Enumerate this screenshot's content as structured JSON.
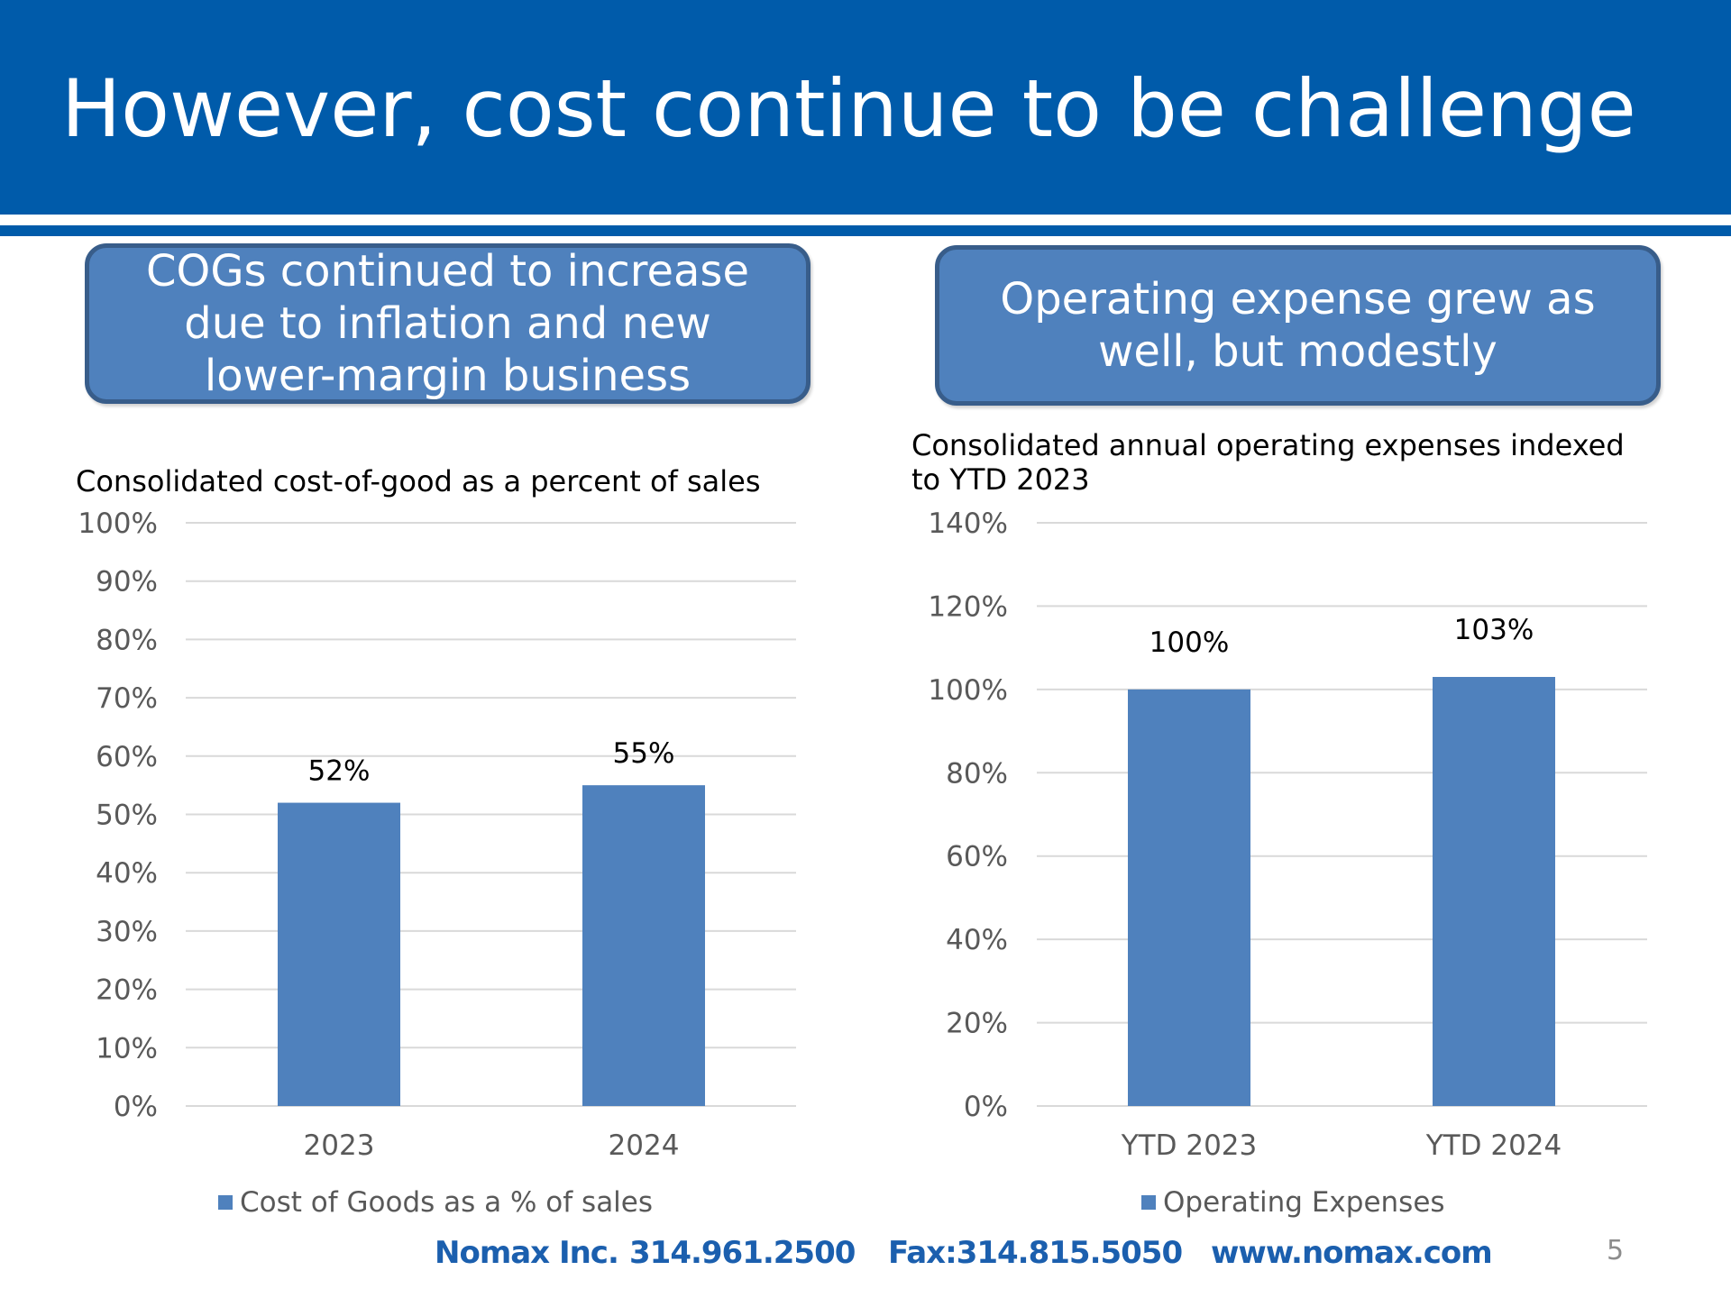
{
  "slide": {
    "title": "However, cost continue to be challenge",
    "page_number": "5"
  },
  "callouts": {
    "left_lines": [
      "COGs continued to increase",
      "due to inflation and new",
      "lower-margin business"
    ],
    "right_lines": [
      "Operating expense grew as",
      "well, but modestly"
    ]
  },
  "footer": {
    "company": "Nomax Inc.",
    "phone": "314.961.2500",
    "fax": "Fax:314.815.5050",
    "website": "www.nomax.com"
  },
  "colors": {
    "header": "#005BAA",
    "bar": "#4F81BD",
    "callout_border": "#385D8A",
    "footer_text": "#1B5FAE"
  },
  "chart_data": [
    {
      "type": "bar",
      "title": "Consolidated cost-of-good as a percent of sales",
      "categories": [
        "2023",
        "2024"
      ],
      "series": [
        {
          "name": "Cost of Goods as a % of sales",
          "values": [
            52,
            55
          ]
        }
      ],
      "data_labels": [
        "52%",
        "55%"
      ],
      "ylim": [
        0,
        100
      ],
      "yticks": [
        "0%",
        "10%",
        "20%",
        "30%",
        "40%",
        "50%",
        "60%",
        "70%",
        "80%",
        "90%",
        "100%"
      ],
      "grid": true,
      "legend": "bottom"
    },
    {
      "type": "bar",
      "title": "Consolidated annual operating expenses indexed to YTD 2023",
      "categories": [
        "YTD 2023",
        "YTD 2024"
      ],
      "series": [
        {
          "name": "Operating Expenses",
          "values": [
            100,
            103
          ]
        }
      ],
      "data_labels": [
        "100%",
        "103%"
      ],
      "ylim": [
        0,
        140
      ],
      "yticks": [
        "0%",
        "20%",
        "40%",
        "60%",
        "80%",
        "100%",
        "120%",
        "140%"
      ],
      "grid": true,
      "legend": "bottom"
    }
  ]
}
